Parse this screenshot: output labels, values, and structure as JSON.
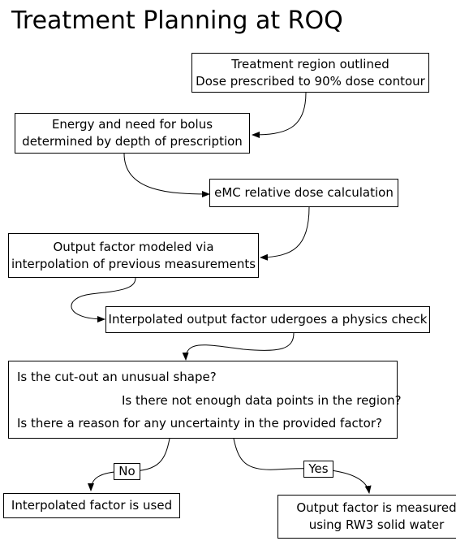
{
  "title": "Treatment Planning at ROQ",
  "nodes": {
    "region": {
      "line1": "Treatment region outlined",
      "line2": "Dose prescribed to 90% dose contour"
    },
    "energy": {
      "line1": "Energy and need for bolus",
      "line2": "determined by depth of prescription"
    },
    "emc": {
      "line1": "eMC relative dose calculation"
    },
    "output_model": {
      "line1": "Output factor modeled via",
      "line2": "interpolation of previous measurements"
    },
    "physics_check": {
      "line1": "Interpolated output factor udergoes a physics check"
    },
    "questions": {
      "q1": "Is the cut-out an unusual shape?",
      "q2": "Is there not enough data points in the region?",
      "q3": "Is there a reason for any uncertainty in the provided factor?"
    },
    "interpolated_used": {
      "line1": "Interpolated factor is used"
    },
    "measured": {
      "line1": "Output factor is measured",
      "line2": "using RW3 solid water"
    }
  },
  "edge_labels": {
    "no": "No",
    "yes": "Yes"
  },
  "colors": {
    "stroke": "#000000",
    "background": "#ffffff"
  }
}
